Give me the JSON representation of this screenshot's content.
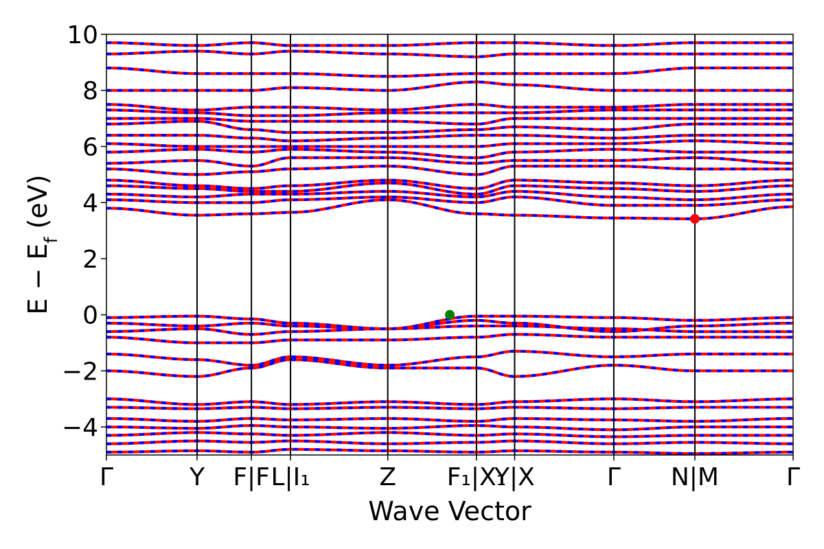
{
  "chart_data": {
    "type": "line",
    "title": "",
    "xlabel": "Wave Vector",
    "ylabel_main": "E − E",
    "ylabel_sub": "f",
    "ylabel_unit": " (eV)",
    "ylim": [
      -5,
      10
    ],
    "y_ticks": [
      -4,
      -2,
      0,
      2,
      4,
      6,
      8,
      10
    ],
    "y_tick_labels": [
      "−4",
      "−2",
      "0",
      "2",
      "4",
      "6",
      "8",
      "10"
    ],
    "x_range": [
      0,
      7.2
    ],
    "kpoints": [
      {
        "x": 0.0,
        "label": "Γ"
      },
      {
        "x": 0.95,
        "label": "Y"
      },
      {
        "x": 1.52,
        "label": "F|F"
      },
      {
        "x": 1.93,
        "label": "L|I₁"
      },
      {
        "x": 2.95,
        "label": "Z"
      },
      {
        "x": 3.88,
        "label": "F₁|X₁"
      },
      {
        "x": 4.28,
        "label": "Y|X"
      },
      {
        "x": 5.32,
        "label": "Γ"
      },
      {
        "x": 6.17,
        "label": "N|M"
      },
      {
        "x": 7.2,
        "label": "Γ"
      }
    ],
    "vbm": {
      "x": 3.6,
      "y": 0.0,
      "color": "#008000"
    },
    "cbm": {
      "x": 6.17,
      "y": -5.0,
      "comment_placeholder": ""
    },
    "cbm_point": {
      "x": 6.17,
      "y": 3.42,
      "color": "#ff0000"
    },
    "series_colors": {
      "spin_up": "#ff0000",
      "spin_down": "#0000ff"
    },
    "bands": [
      [
        -4.9,
        -4.85,
        -4.9,
        -4.8,
        -4.85,
        -4.9,
        -4.85,
        -4.9,
        -4.95,
        -4.9
      ],
      [
        -4.6,
        -4.5,
        -4.55,
        -4.5,
        -4.6,
        -4.55,
        -4.5,
        -4.6,
        -4.55,
        -4.6
      ],
      [
        -4.3,
        -4.2,
        -4.25,
        -4.3,
        -4.2,
        -4.3,
        -4.25,
        -4.35,
        -4.3,
        -4.3
      ],
      [
        -4.0,
        -4.05,
        -3.95,
        -4.0,
        -4.05,
        -3.95,
        -4.0,
        -4.1,
        -4.0,
        -4.0
      ],
      [
        -3.7,
        -3.8,
        -3.7,
        -3.75,
        -3.7,
        -3.8,
        -3.7,
        -3.75,
        -3.8,
        -3.7
      ],
      [
        -3.3,
        -3.35,
        -3.3,
        -3.35,
        -3.3,
        -3.35,
        -3.3,
        -3.35,
        -3.3,
        -3.3
      ],
      [
        -3.0,
        -3.2,
        -3.1,
        -3.2,
        -3.1,
        -3.2,
        -3.1,
        -3.0,
        -3.1,
        -3.0
      ],
      [
        -2.0,
        -2.2,
        -1.9,
        -1.6,
        -1.9,
        -1.9,
        -2.2,
        -1.8,
        -2.0,
        -2.0
      ],
      [
        -1.4,
        -1.6,
        -1.8,
        -1.5,
        -1.8,
        -1.5,
        -1.3,
        -1.5,
        -1.4,
        -1.4
      ],
      [
        -0.8,
        -1.0,
        -1.0,
        -0.9,
        -0.9,
        -0.8,
        -0.7,
        -0.8,
        -0.8,
        -0.8
      ],
      [
        -0.6,
        -0.5,
        -0.7,
        -0.6,
        -0.5,
        -0.4,
        -0.4,
        -0.5,
        -0.6,
        -0.6
      ],
      [
        -0.3,
        -0.4,
        -0.3,
        -0.4,
        -0.5,
        -0.2,
        -0.3,
        -0.6,
        -0.4,
        -0.3
      ],
      [
        -0.1,
        -0.05,
        -0.15,
        -0.3,
        -0.5,
        -0.05,
        -0.05,
        -0.1,
        -0.2,
        -0.1
      ],
      [
        3.8,
        3.55,
        3.6,
        3.65,
        4.1,
        3.6,
        3.55,
        3.45,
        3.42,
        3.85
      ],
      [
        4.1,
        4.0,
        4.0,
        4.1,
        4.2,
        4.0,
        4.2,
        3.9,
        3.9,
        4.1
      ],
      [
        4.3,
        4.2,
        4.3,
        4.3,
        4.4,
        4.2,
        4.4,
        4.2,
        4.1,
        4.3
      ],
      [
        4.6,
        4.5,
        4.4,
        4.4,
        4.7,
        4.3,
        4.6,
        4.5,
        4.4,
        4.6
      ],
      [
        4.8,
        4.6,
        4.5,
        4.6,
        4.8,
        4.5,
        4.8,
        4.7,
        4.6,
        4.8
      ],
      [
        5.2,
        5.0,
        5.1,
        5.2,
        5.3,
        5.0,
        5.3,
        5.3,
        5.2,
        5.2
      ],
      [
        5.4,
        5.5,
        5.3,
        5.6,
        5.6,
        5.4,
        5.5,
        5.5,
        5.6,
        5.4
      ],
      [
        5.8,
        5.9,
        5.8,
        5.9,
        5.8,
        5.6,
        5.8,
        5.9,
        5.8,
        5.8
      ],
      [
        6.1,
        6.0,
        6.0,
        6.0,
        6.0,
        6.0,
        6.1,
        6.1,
        6.2,
        6.1
      ],
      [
        6.4,
        6.4,
        6.3,
        6.2,
        6.3,
        6.4,
        6.4,
        6.3,
        6.4,
        6.4
      ],
      [
        6.8,
        6.9,
        6.6,
        6.5,
        6.5,
        6.6,
        6.7,
        6.6,
        6.8,
        6.8
      ],
      [
        7.0,
        7.0,
        6.9,
        6.9,
        6.9,
        6.8,
        7.0,
        7.0,
        7.0,
        7.0
      ],
      [
        7.3,
        7.2,
        7.1,
        7.1,
        7.2,
        7.2,
        7.2,
        7.3,
        7.3,
        7.3
      ],
      [
        7.5,
        7.3,
        7.4,
        7.4,
        7.3,
        7.5,
        7.4,
        7.4,
        7.5,
        7.5
      ],
      [
        8.0,
        8.0,
        8.0,
        8.1,
        8.0,
        8.3,
        8.2,
        8.0,
        8.0,
        8.0
      ],
      [
        8.8,
        8.6,
        8.6,
        8.6,
        8.5,
        8.6,
        8.6,
        8.6,
        8.8,
        8.8
      ],
      [
        9.3,
        9.4,
        9.3,
        9.4,
        9.3,
        9.2,
        9.3,
        9.3,
        9.3,
        9.3
      ],
      [
        9.7,
        9.6,
        9.7,
        9.6,
        9.6,
        9.7,
        9.7,
        9.6,
        9.7,
        9.7
      ]
    ]
  }
}
